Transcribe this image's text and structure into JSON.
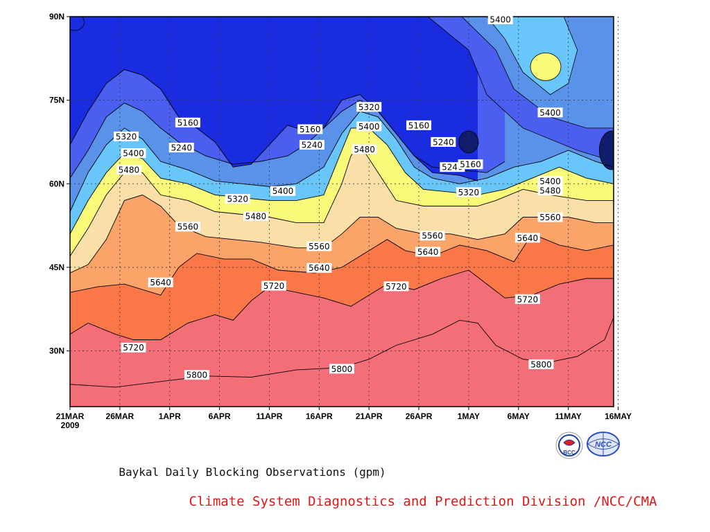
{
  "chart_data": {
    "type": "heatmap",
    "title": "Baykal Daily Blocking Observations (gpm)",
    "x_ticks": [
      "21MAR",
      "26MAR",
      "1APR",
      "6APR",
      "11APR",
      "16APR",
      "21APR",
      "26APR",
      "1MAY",
      "6MAY",
      "11MAY",
      "16MAY"
    ],
    "x_year": "2009",
    "xlim_days": [
      0,
      60
    ],
    "y_ticks": [
      "30N",
      "45N",
      "60N",
      "75N",
      "90N"
    ],
    "ylim": [
      20,
      90
    ],
    "levels": [
      5160,
      5240,
      5320,
      5400,
      5480,
      5560,
      5640,
      5720,
      5800
    ],
    "fill_colors": [
      "#101c6c",
      "#1a2ce0",
      "#4a5ef0",
      "#5a92ea",
      "#68c6fa",
      "#fafa7a",
      "#fae0a8",
      "#faa46a",
      "#fa7848",
      "#f46e78"
    ],
    "contours": [
      {
        "level": 5800,
        "points": [
          [
            0,
            24
          ],
          [
            5,
            23.5
          ],
          [
            10,
            24.5
          ],
          [
            15,
            25.5
          ],
          [
            20,
            25.3
          ],
          [
            25,
            26.6
          ],
          [
            30,
            27
          ],
          [
            33,
            28.5
          ],
          [
            36,
            31
          ],
          [
            40,
            33
          ],
          [
            43,
            35.5
          ],
          [
            45,
            35
          ],
          [
            47,
            31
          ],
          [
            50,
            28.5
          ],
          [
            53,
            28
          ],
          [
            56,
            29
          ],
          [
            59,
            32
          ],
          [
            60,
            36
          ]
        ],
        "labels": [
          [
            14,
            25.7,
            "5800"
          ],
          [
            30,
            26.8,
            "5800"
          ],
          [
            52,
            27.6,
            "5800"
          ]
        ]
      },
      {
        "level": 5720,
        "points": [
          [
            0,
            33
          ],
          [
            2,
            35
          ],
          [
            5,
            33
          ],
          [
            7,
            32
          ],
          [
            10,
            32
          ],
          [
            13,
            35
          ],
          [
            16,
            36.5
          ],
          [
            18,
            35.5
          ],
          [
            20,
            39
          ],
          [
            22,
            41.5
          ],
          [
            25,
            40.5
          ],
          [
            28,
            39.5
          ],
          [
            31,
            38
          ],
          [
            33,
            40
          ],
          [
            35,
            42
          ],
          [
            38,
            41
          ],
          [
            41,
            43
          ],
          [
            44,
            44.5
          ],
          [
            46,
            42
          ],
          [
            48,
            39.5
          ],
          [
            51,
            40
          ],
          [
            54,
            42
          ],
          [
            57,
            43
          ],
          [
            60,
            43
          ]
        ],
        "labels": [
          [
            7,
            30.6,
            "5720"
          ],
          [
            22.5,
            41.7,
            "5720"
          ],
          [
            36,
            41.6,
            "5720"
          ],
          [
            50.5,
            39.3,
            "5720"
          ]
        ]
      },
      {
        "level": 5640,
        "points": [
          [
            0,
            40.5
          ],
          [
            3,
            41.5
          ],
          [
            6,
            42
          ],
          [
            8,
            41
          ],
          [
            10,
            40
          ],
          [
            12,
            45
          ],
          [
            14,
            47.5
          ],
          [
            17,
            46.5
          ],
          [
            20,
            46.5
          ],
          [
            23,
            44.5
          ],
          [
            27,
            44
          ],
          [
            30,
            45
          ],
          [
            33,
            48
          ],
          [
            35,
            50
          ],
          [
            37,
            48
          ],
          [
            40,
            47
          ],
          [
            43,
            49
          ],
          [
            46,
            48
          ],
          [
            49,
            46
          ],
          [
            51,
            51
          ],
          [
            54,
            49
          ],
          [
            57,
            48
          ],
          [
            60,
            49
          ]
        ],
        "labels": [
          [
            10,
            42.3,
            "5640"
          ],
          [
            27.5,
            44.9,
            "5640"
          ],
          [
            39.5,
            47.8,
            "5640"
          ],
          [
            50.5,
            50.3,
            "5640"
          ]
        ]
      },
      {
        "level": 5560,
        "points": [
          [
            0,
            44
          ],
          [
            2,
            45.5
          ],
          [
            4,
            50
          ],
          [
            6,
            57
          ],
          [
            8,
            58
          ],
          [
            10,
            56
          ],
          [
            12,
            52.5
          ],
          [
            15,
            50.5
          ],
          [
            18,
            50
          ],
          [
            21,
            49.5
          ],
          [
            25,
            48.5
          ],
          [
            28,
            48.5
          ],
          [
            30,
            51
          ],
          [
            32,
            54
          ],
          [
            34,
            54
          ],
          [
            36,
            52
          ],
          [
            39,
            51
          ],
          [
            42,
            51
          ],
          [
            45,
            50
          ],
          [
            48,
            51
          ],
          [
            50,
            54
          ],
          [
            52,
            54
          ],
          [
            55,
            54
          ],
          [
            58,
            53
          ],
          [
            60,
            53
          ]
        ],
        "labels": [
          [
            13,
            52.3,
            "5560"
          ],
          [
            27.5,
            48.8,
            "5560"
          ],
          [
            40,
            50.7,
            "5560"
          ],
          [
            53,
            54,
            "5560"
          ]
        ]
      },
      {
        "level": 5480,
        "points": [
          [
            0,
            47
          ],
          [
            2,
            52
          ],
          [
            4,
            58
          ],
          [
            6,
            62
          ],
          [
            8,
            62
          ],
          [
            10,
            58
          ],
          [
            13,
            57
          ],
          [
            16,
            55
          ],
          [
            19,
            54.5
          ],
          [
            22,
            54
          ],
          [
            25,
            53
          ],
          [
            28,
            53
          ],
          [
            30,
            60
          ],
          [
            31,
            65
          ],
          [
            32,
            67
          ],
          [
            34,
            62
          ],
          [
            36,
            57
          ],
          [
            39,
            56
          ],
          [
            42,
            56
          ],
          [
            45,
            56
          ],
          [
            47,
            57
          ],
          [
            50,
            59
          ],
          [
            53,
            58
          ],
          [
            57,
            57
          ],
          [
            60,
            57
          ]
        ],
        "labels": [
          [
            6.5,
            62.5,
            "5480"
          ],
          [
            20.5,
            54.2,
            "5480"
          ],
          [
            32.5,
            66.2,
            "5480"
          ],
          [
            53,
            58.8,
            "5480"
          ]
        ]
      },
      {
        "level": 5400,
        "points": [
          [
            0,
            51
          ],
          [
            2,
            57
          ],
          [
            4,
            62
          ],
          [
            6,
            65.5
          ],
          [
            8,
            64.5
          ],
          [
            10,
            61
          ],
          [
            13,
            60
          ],
          [
            16,
            58
          ],
          [
            19,
            57.5
          ],
          [
            22,
            57
          ],
          [
            25,
            57
          ],
          [
            28,
            58
          ],
          [
            30,
            66
          ],
          [
            31,
            70
          ],
          [
            33,
            70
          ],
          [
            35,
            67
          ],
          [
            37,
            62
          ],
          [
            39,
            59
          ],
          [
            42,
            58.5
          ],
          [
            45,
            58
          ],
          [
            48,
            59
          ],
          [
            51,
            61
          ],
          [
            54,
            63
          ],
          [
            57,
            61
          ],
          [
            60,
            60
          ]
        ],
        "labels": [
          [
            7,
            65.5,
            "5400"
          ],
          [
            23.5,
            58.7,
            "5400"
          ],
          [
            33,
            70.3,
            "5400"
          ],
          [
            53,
            60.5,
            "5400"
          ],
          [
            53,
            72.8,
            "5400"
          ],
          [
            47.5,
            89.5,
            "5400"
          ]
        ]
      },
      {
        "level": 5320,
        "points": [
          [
            0,
            55
          ],
          [
            2,
            62
          ],
          [
            4,
            67
          ],
          [
            6,
            70
          ],
          [
            8,
            68
          ],
          [
            10,
            64
          ],
          [
            13,
            62.5
          ],
          [
            16,
            60.5
          ],
          [
            19,
            60
          ],
          [
            22,
            59.5
          ],
          [
            25,
            60
          ],
          [
            28,
            63
          ],
          [
            30,
            69
          ],
          [
            32,
            73
          ],
          [
            34,
            72
          ],
          [
            36,
            68
          ],
          [
            38,
            63
          ],
          [
            40,
            61
          ],
          [
            43,
            60
          ],
          [
            46,
            61
          ],
          [
            49,
            63
          ],
          [
            52,
            64
          ],
          [
            55,
            66
          ],
          [
            58,
            64
          ],
          [
            60,
            63
          ]
        ],
        "labels": [
          [
            6.2,
            68.5,
            "5320"
          ],
          [
            18.5,
            57.3,
            "5320"
          ],
          [
            33,
            73.8,
            "5320"
          ],
          [
            44,
            58.5,
            "5320"
          ]
        ]
      },
      {
        "level": 5240,
        "points": [
          [
            0,
            61
          ],
          [
            2,
            66
          ],
          [
            4,
            72
          ],
          [
            6,
            74.5
          ],
          [
            8,
            73
          ],
          [
            10,
            70
          ],
          [
            12,
            67.5
          ],
          [
            15,
            65
          ],
          [
            18,
            63.5
          ],
          [
            21,
            64
          ],
          [
            24,
            65
          ],
          [
            26,
            67
          ],
          [
            28,
            70
          ],
          [
            30,
            73
          ],
          [
            32,
            75
          ],
          [
            34,
            73
          ],
          [
            36,
            69
          ],
          [
            38,
            65
          ],
          [
            40,
            63
          ],
          [
            43,
            62.5
          ],
          [
            46,
            62
          ],
          [
            48,
            64
          ]
        ],
        "labels": [
          [
            12.3,
            66.5,
            "5240"
          ],
          [
            26.7,
            67,
            "5240"
          ],
          [
            41.2,
            67.5,
            "5240"
          ],
          [
            42.2,
            63,
            "5240"
          ]
        ]
      },
      {
        "level": 5160,
        "points": [
          [
            0,
            67
          ],
          [
            2,
            73
          ],
          [
            4,
            78
          ],
          [
            6,
            80.5
          ],
          [
            8,
            79.5
          ],
          [
            10,
            77
          ],
          [
            12,
            72
          ],
          [
            14,
            70
          ],
          [
            16,
            67.5
          ],
          [
            18,
            63
          ],
          [
            20,
            63.5
          ],
          [
            22,
            67
          ],
          [
            24,
            70.5
          ],
          [
            26,
            69.5
          ],
          [
            28,
            70
          ],
          [
            30,
            75
          ],
          [
            32,
            76
          ],
          [
            34,
            73
          ],
          [
            36,
            69
          ],
          [
            38,
            65
          ],
          [
            40,
            62
          ],
          [
            43,
            61.5
          ],
          [
            45,
            60.5
          ]
        ],
        "labels": [
          [
            13,
            71,
            "5160"
          ],
          [
            26.5,
            69.8,
            "5160"
          ],
          [
            38.5,
            70.5,
            "5160"
          ],
          [
            44.2,
            63.5,
            "5160"
          ]
        ]
      }
    ]
  },
  "branding": {
    "credit": "Climate System Diagnostics and Prediction Division /NCC/CMA",
    "logo_left_text": "BCC",
    "logo_right_text": "NCC",
    "logo_left_color": "#1f3fa8",
    "logo_right_color": "#2b4fbf",
    "logo_accent": "#d82020"
  }
}
